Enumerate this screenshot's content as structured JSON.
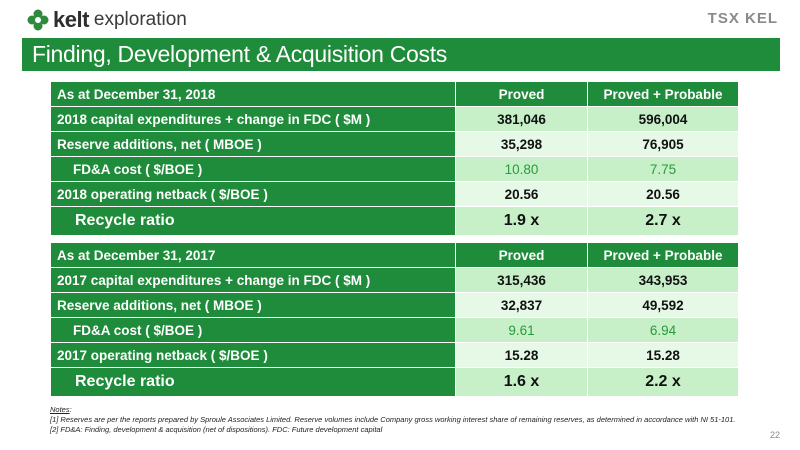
{
  "logo": {
    "brand": "kelt",
    "suffix": "exploration"
  },
  "tsx_logo": "TSX KEL",
  "title": "Finding, Development & Acquisition Costs",
  "tables": [
    {
      "header": [
        "As at December 31, 2018",
        "Proved",
        "Proved +  Probable"
      ],
      "rows": [
        [
          "2018 capital expenditures + change in FDC ( $M )",
          "381,046",
          "596,004"
        ],
        [
          "Reserve additions, net ( MBOE )",
          "35,298",
          "76,905"
        ],
        [
          "FD&A cost ( $/BOE )",
          "10.80",
          "7.75"
        ],
        [
          "2018 operating netback ( $/BOE )",
          "20.56",
          "20.56"
        ],
        [
          "Recycle ratio",
          "1.9 x",
          "2.7 x"
        ]
      ]
    },
    {
      "header": [
        "As at December 31, 2017",
        "Proved",
        "Proved +  Probable"
      ],
      "rows": [
        [
          "2017 capital expenditures + change in FDC ( $M )",
          "315,436",
          "343,953"
        ],
        [
          "Reserve additions, net ( MBOE )",
          "32,837",
          "49,592"
        ],
        [
          "FD&A cost ( $/BOE )",
          "9.61",
          "6.94"
        ],
        [
          "2017 operating netback ( $/BOE )",
          "15.28",
          "15.28"
        ],
        [
          "Recycle ratio",
          "1.6 x",
          "2.2 x"
        ]
      ]
    }
  ],
  "notes": {
    "heading": "Notes",
    "lines": [
      "[1]  Reserves are per the reports prepared by Sproule Associates Limited. Reserve volumes include Company gross working interest share of remaining reserves, as determined in accordance with NI 51-101.",
      "[2]  FD&A: Finding, development & acquisition (net of dispositions). FDC: Future development capital"
    ]
  },
  "page_number": "22",
  "colors": {
    "brand_green": "#1e8c3a",
    "cell_light": "#c7f0c9",
    "cell_lighter": "#e6f8e6",
    "fda_value_green": "#2a9a3c"
  },
  "icons": {
    "logo_mark": "kelt-leaf-cluster-icon"
  }
}
